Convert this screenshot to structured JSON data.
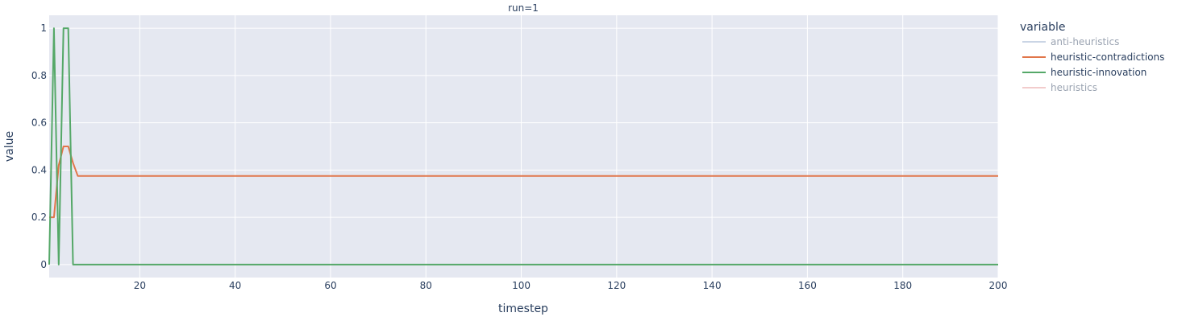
{
  "chart_data": {
    "type": "line",
    "title": "run=1",
    "xlabel": "timestep",
    "ylabel": "value",
    "xlim": [
      1,
      200
    ],
    "ylim": [
      -0.055,
      1.055
    ],
    "xticks": [
      20,
      40,
      60,
      80,
      100,
      120,
      140,
      160,
      180,
      200
    ],
    "yticks": [
      0,
      0.2,
      0.4,
      0.6,
      0.8,
      1
    ],
    "ytick_labels": [
      "0",
      "0.2",
      "0.4",
      "0.6",
      "0.8",
      "1"
    ],
    "grid": true,
    "legend_title": "variable",
    "legend_position": "right",
    "plot_background": "#e5e8f1",
    "series": [
      {
        "name": "anti-heuristics",
        "color": "#9fb4d0",
        "visible": false,
        "x": [],
        "y": []
      },
      {
        "name": "heuristic-contradictions",
        "color": "#e1764a",
        "visible": true,
        "x": [
          1,
          2,
          3,
          4,
          5,
          6,
          7,
          200
        ],
        "y": [
          0.2,
          0.2,
          0.42,
          0.5,
          0.5,
          0.43,
          0.375,
          0.375
        ]
      },
      {
        "name": "heuristic-innovation",
        "color": "#55a868",
        "visible": true,
        "x": [
          1,
          2,
          3,
          4,
          5,
          6,
          200
        ],
        "y": [
          0,
          1,
          0,
          1,
          1,
          0,
          0
        ]
      },
      {
        "name": "heuristics",
        "color": "#e8a4a4",
        "visible": false,
        "x": [],
        "y": []
      }
    ]
  }
}
